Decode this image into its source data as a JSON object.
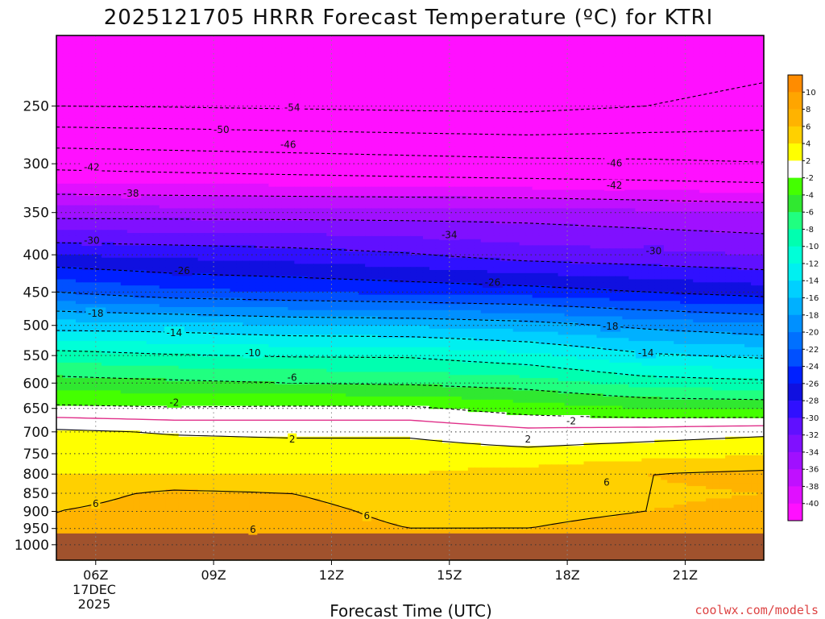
{
  "colors": {
    "ground": "#a0522d",
    "credit": "#d44444",
    "freezing_line": "#e0308a"
  },
  "chart_data": {
    "type": "heatmap",
    "title": "2025121705 HRRR Forecast Temperature (ºC) for KTRI",
    "xlabel": "Forecast Time (UTC)",
    "ylabel": "",
    "credit": "coolwx.com/models",
    "x_ticks": [
      {
        "hour": 6,
        "label": "06Z"
      },
      {
        "hour": 9,
        "label": "09Z"
      },
      {
        "hour": 12,
        "label": "12Z"
      },
      {
        "hour": 15,
        "label": "15Z"
      },
      {
        "hour": 18,
        "label": "18Z"
      },
      {
        "hour": 21,
        "label": "21Z"
      }
    ],
    "x_sublabels": [
      "17DEC",
      "2025"
    ],
    "xlim": [
      5,
      23
    ],
    "y_ticks": [
      250,
      300,
      350,
      400,
      450,
      500,
      550,
      600,
      650,
      700,
      750,
      800,
      850,
      900,
      950,
      1000
    ],
    "y_axis": "pressure (hPa), log scale, inverted",
    "ylim": [
      1050,
      200
    ],
    "surface_pressure": 965,
    "colorbar": {
      "tick_labels": [
        "10",
        "8",
        "6",
        "4",
        "2",
        "-2",
        "-4",
        "-6",
        "-8",
        "-10",
        "-12",
        "-14",
        "-16",
        "-18",
        "-20",
        "-22",
        "-24",
        "-26",
        "-28",
        "-30",
        "-32",
        "-34",
        "-36",
        "-38",
        "-40"
      ],
      "bands": [
        {
          "min": 10,
          "max": 12,
          "color": "#ff8c00"
        },
        {
          "min": 8,
          "max": 10,
          "color": "#ffa500"
        },
        {
          "min": 6,
          "max": 8,
          "color": "#ffb300"
        },
        {
          "min": 4,
          "max": 6,
          "color": "#ffd000"
        },
        {
          "min": 2,
          "max": 4,
          "color": "#ffff00"
        },
        {
          "min": -2,
          "max": 2,
          "color": "#ffffff"
        },
        {
          "min": -4,
          "max": -2,
          "color": "#44ff00"
        },
        {
          "min": -6,
          "max": -4,
          "color": "#30e830"
        },
        {
          "min": -8,
          "max": -6,
          "color": "#20ff80"
        },
        {
          "min": -10,
          "max": -8,
          "color": "#00ffb0"
        },
        {
          "min": -12,
          "max": -10,
          "color": "#00ffd8"
        },
        {
          "min": -14,
          "max": -12,
          "color": "#00f0f0"
        },
        {
          "min": -16,
          "max": -14,
          "color": "#00d0ff"
        },
        {
          "min": -18,
          "max": -16,
          "color": "#00b0ff"
        },
        {
          "min": -20,
          "max": -18,
          "color": "#0090ff"
        },
        {
          "min": -22,
          "max": -20,
          "color": "#0070ff"
        },
        {
          "min": -24,
          "max": -22,
          "color": "#0050ff"
        },
        {
          "min": -26,
          "max": -24,
          "color": "#0020ff"
        },
        {
          "min": -28,
          "max": -26,
          "color": "#1010e0"
        },
        {
          "min": -30,
          "max": -28,
          "color": "#3010ff"
        },
        {
          "min": -32,
          "max": -30,
          "color": "#6010ff"
        },
        {
          "min": -34,
          "max": -32,
          "color": "#8010ff"
        },
        {
          "min": -36,
          "max": -34,
          "color": "#a010ff"
        },
        {
          "min": -38,
          "max": -36,
          "color": "#c010ff"
        },
        {
          "min": -40,
          "max": -38,
          "color": "#e010ff"
        },
        {
          "min": -60,
          "max": -40,
          "color": "#ff10ff"
        }
      ]
    },
    "profile": {
      "pressure_levels": [
        1000,
        950,
        900,
        850,
        800,
        750,
        700,
        650,
        600,
        550,
        500,
        450,
        400,
        350,
        300,
        250,
        200
      ],
      "hours": [
        5,
        8,
        11,
        14,
        17,
        20,
        23
      ],
      "temperature": [
        [
          7,
          7,
          7,
          7,
          7,
          8,
          9
        ],
        [
          6,
          6.5,
          6.8,
          6,
          6,
          6.5,
          7
        ],
        [
          6,
          6.8,
          6.6,
          5.5,
          5.6,
          6,
          6.3
        ],
        [
          5.2,
          6.4,
          6,
          5,
          5.2,
          5.8,
          6
        ],
        [
          4,
          4,
          4,
          4,
          4.8,
          6,
          6.5
        ],
        [
          3.5,
          3.2,
          3,
          3,
          2.6,
          3.2,
          3.8
        ],
        [
          2.4,
          1.8,
          1.6,
          1.6,
          0.6,
          1,
          1.5
        ],
        [
          -1.5,
          -1.8,
          -1.6,
          -1.6,
          -3,
          -4,
          -4.2
        ],
        [
          -5,
          -5.5,
          -6,
          -6.3,
          -7,
          -8.8,
          -9.4
        ],
        [
          -9,
          -9.8,
          -10.2,
          -10.3,
          -11.5,
          -13.6,
          -14.5
        ],
        [
          -15,
          -15.2,
          -16,
          -16.2,
          -17,
          -18.6,
          -19.6
        ],
        [
          -22,
          -23.5,
          -24,
          -24.5,
          -25,
          -26,
          -27
        ],
        [
          -28,
          -28.5,
          -29,
          -29.8,
          -31,
          -31.5,
          -32
        ],
        [
          -35,
          -35,
          -35,
          -35,
          -35,
          -35.5,
          -36
        ],
        [
          -43,
          -43.5,
          -44,
          -44.5,
          -45,
          -45.3,
          -45.8
        ],
        [
          -54,
          -54.2,
          -54.5,
          -54.8,
          -55,
          -54,
          -53
        ],
        [
          -56,
          -57,
          -58,
          -58,
          -58,
          -57,
          -56
        ]
      ]
    },
    "contour_labels": [
      {
        "t": -54,
        "hour": 11,
        "p": 251
      },
      {
        "t": -50,
        "hour": 9.2,
        "p": 269
      },
      {
        "t": -46,
        "hour": 10.9,
        "p": 282
      },
      {
        "t": -46,
        "hour": 19.2,
        "p": 299
      },
      {
        "t": -42,
        "hour": 5.9,
        "p": 303
      },
      {
        "t": -42,
        "hour": 19.2,
        "p": 321
      },
      {
        "t": -38,
        "hour": 6.9,
        "p": 329
      },
      {
        "t": -34,
        "hour": 15,
        "p": 375
      },
      {
        "t": -30,
        "hour": 5.9,
        "p": 382
      },
      {
        "t": -30,
        "hour": 20.2,
        "p": 395
      },
      {
        "t": -26,
        "hour": 8.2,
        "p": 420
      },
      {
        "t": -26,
        "hour": 16.1,
        "p": 436
      },
      {
        "t": -18,
        "hour": 6,
        "p": 481
      },
      {
        "t": -18,
        "hour": 19.1,
        "p": 501
      },
      {
        "t": -14,
        "hour": 8,
        "p": 511
      },
      {
        "t": -14,
        "hour": 20,
        "p": 545
      },
      {
        "t": -10,
        "hour": 10,
        "p": 545
      },
      {
        "t": -6,
        "hour": 11,
        "p": 589
      },
      {
        "t": -2,
        "hour": 8,
        "p": 637
      },
      {
        "t": -2,
        "hour": 18.1,
        "p": 676
      },
      {
        "t": 2,
        "hour": 11,
        "p": 716
      },
      {
        "t": 2,
        "hour": 17,
        "p": 716
      },
      {
        "t": 6,
        "hour": 6,
        "p": 877
      },
      {
        "t": 6,
        "hour": 10,
        "p": 952
      },
      {
        "t": 6,
        "hour": 12.9,
        "p": 912
      },
      {
        "t": 6,
        "hour": 19,
        "p": 820
      }
    ]
  }
}
